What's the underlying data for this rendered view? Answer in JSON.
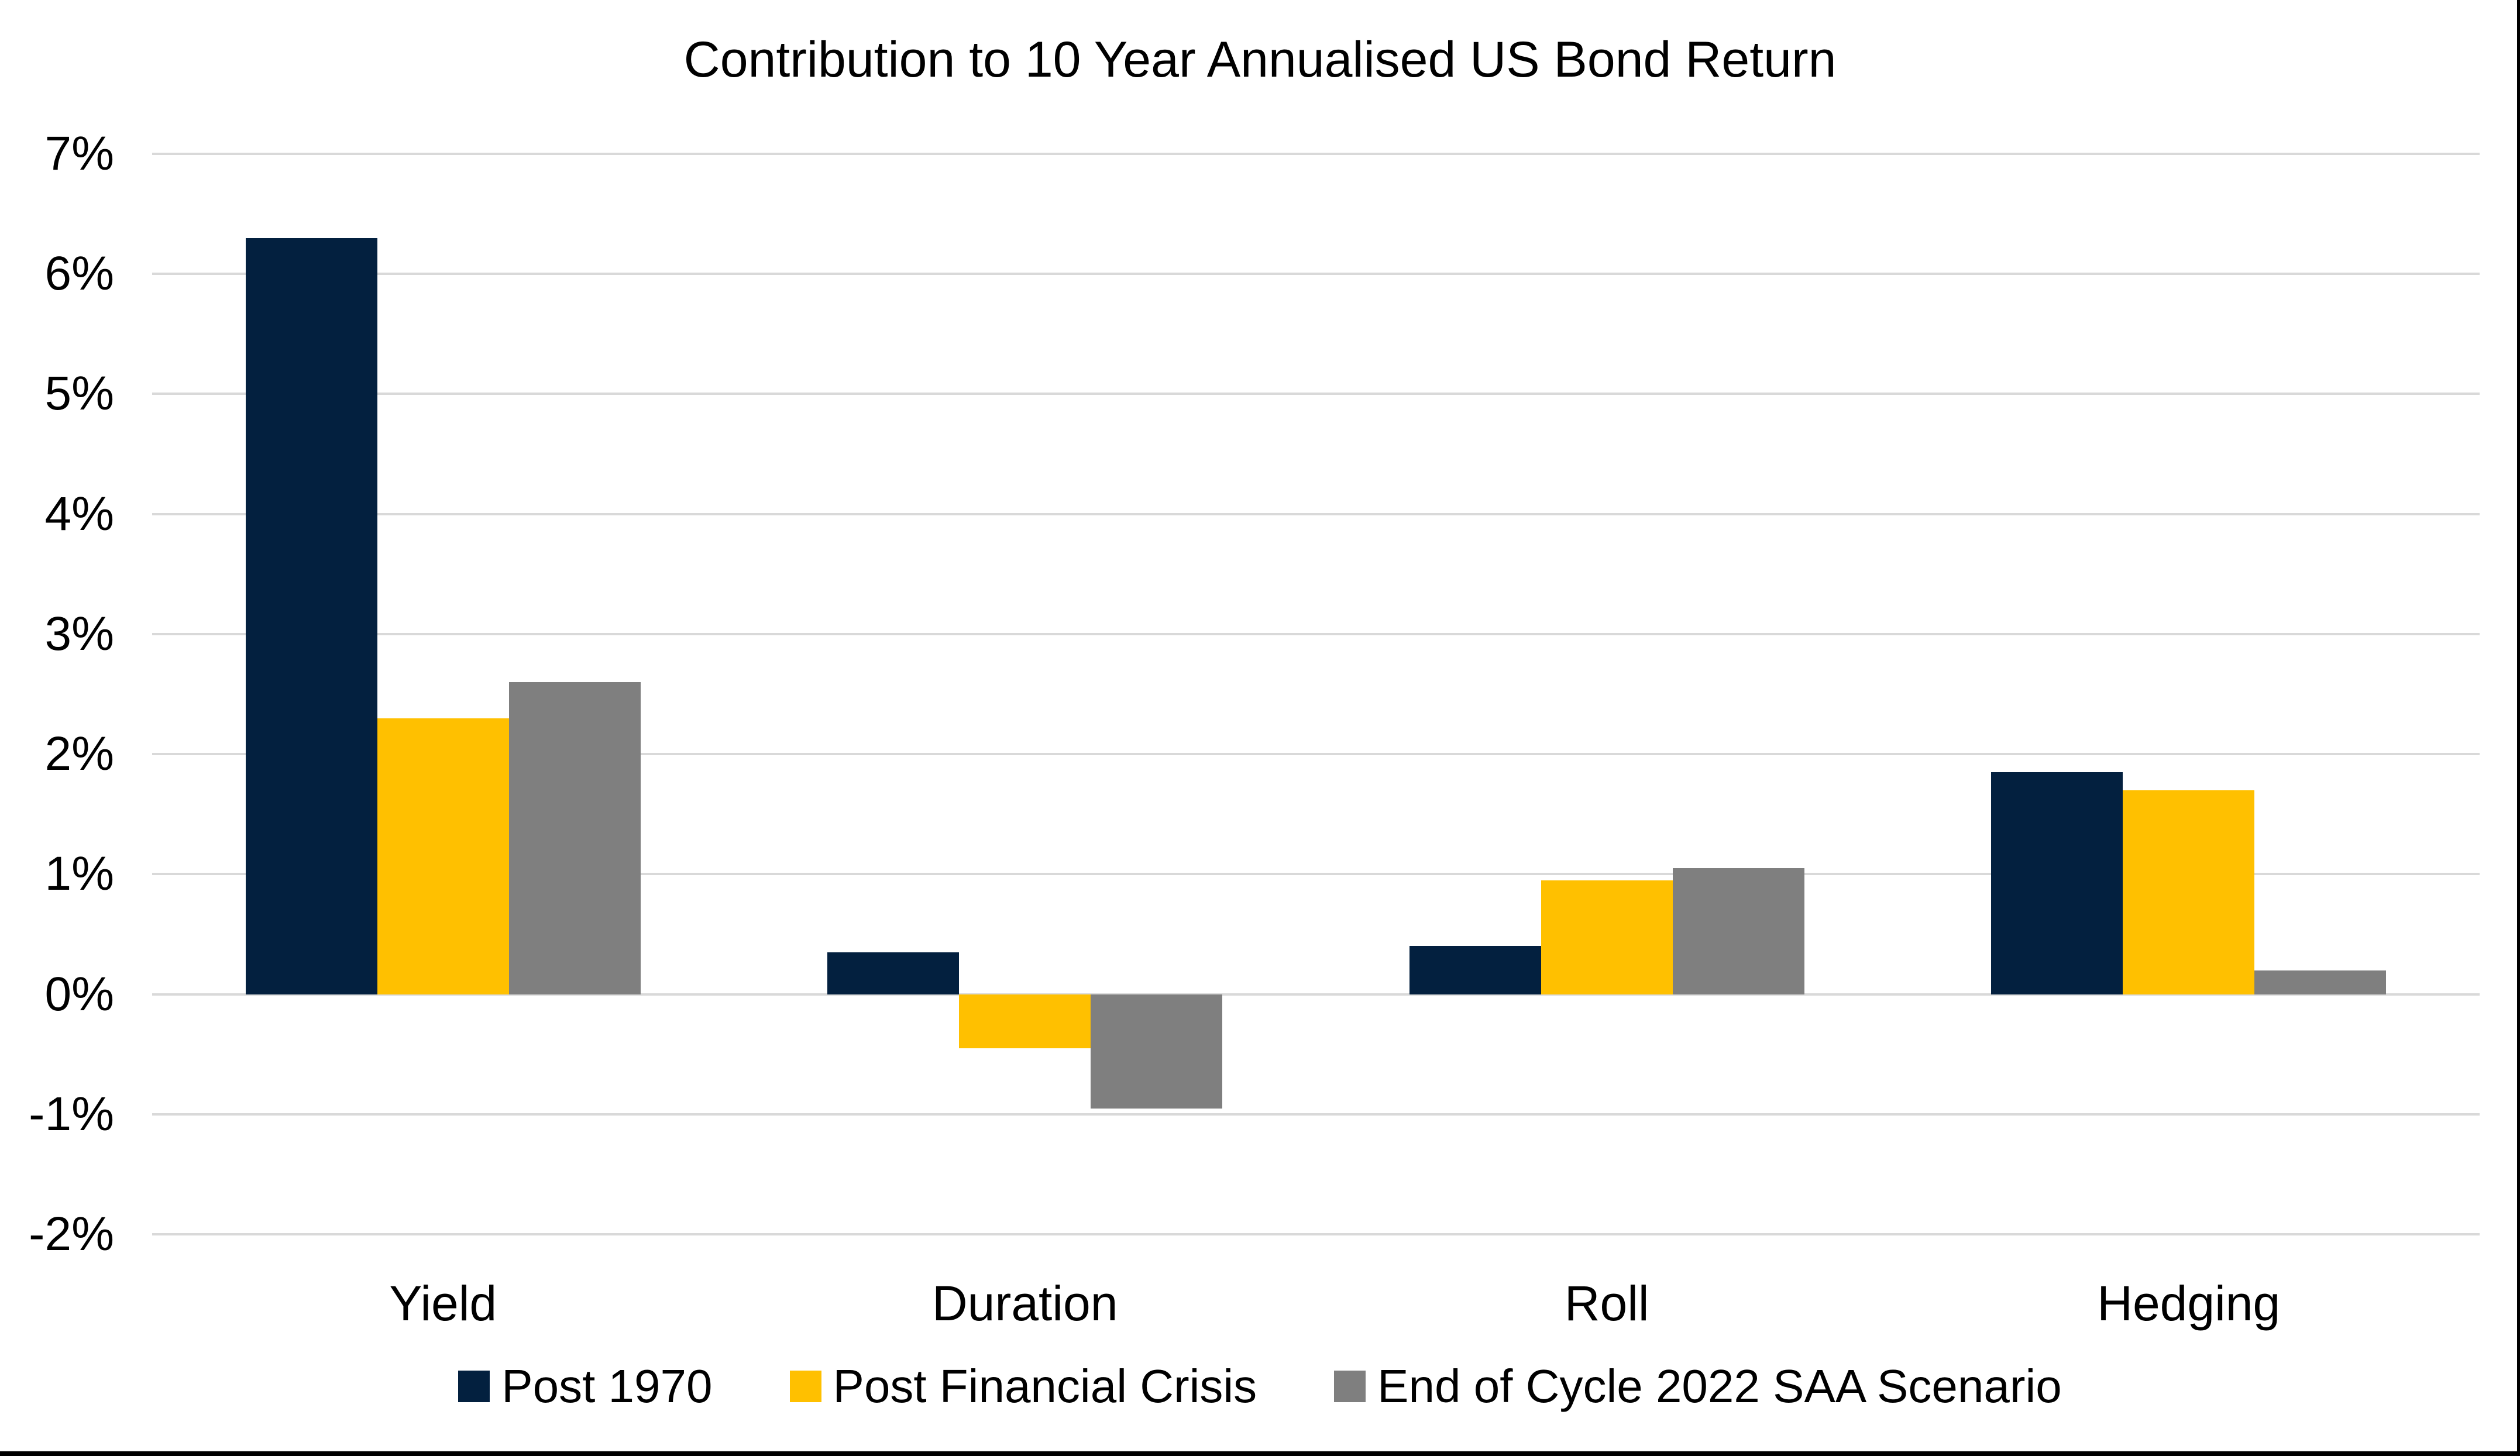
{
  "chart_data": {
    "type": "bar",
    "title": "Contribution to 10 Year Annualised US Bond Return",
    "categories": [
      "Yield",
      "Duration",
      "Roll",
      "Hedging"
    ],
    "series": [
      {
        "name": "Post 1970",
        "color": "#03203F",
        "values": [
          6.3,
          0.35,
          0.4,
          1.85
        ]
      },
      {
        "name": "Post Financial Crisis",
        "color": "#FFC000",
        "values": [
          2.3,
          -0.45,
          0.95,
          1.7
        ]
      },
      {
        "name": "End of Cycle 2022 SAA Scenario",
        "color": "#7F7F7F",
        "values": [
          2.6,
          -0.95,
          1.05,
          0.2
        ]
      }
    ],
    "y_axis": {
      "min": -2,
      "max": 7,
      "tick_step": 1,
      "tick_labels": [
        "7%",
        "6%",
        "5%",
        "4%",
        "3%",
        "2%",
        "1%",
        "0%",
        "-1%",
        "-2%"
      ]
    },
    "grid": true,
    "gridline_color": "#D9D9D9",
    "legend_position": "bottom",
    "background_color": "#FFFFFF",
    "frame_border_color": "#000000",
    "text_color": "#000000"
  }
}
